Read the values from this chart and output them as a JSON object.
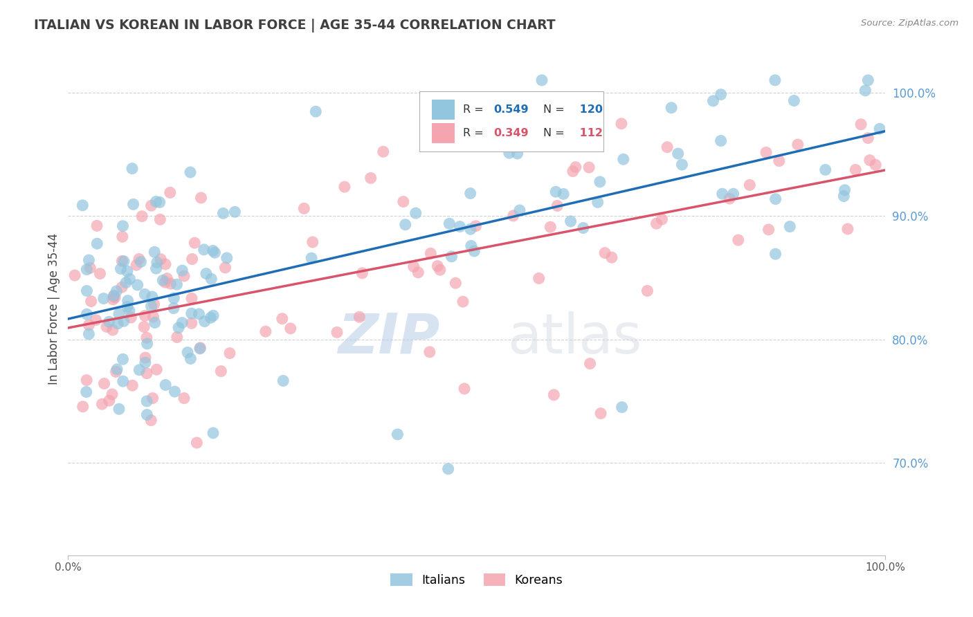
{
  "title": "ITALIAN VS KOREAN IN LABOR FORCE | AGE 35-44 CORRELATION CHART",
  "source_text": "Source: ZipAtlas.com",
  "ylabel": "In Labor Force | Age 35-44",
  "xlim": [
    0.0,
    1.0
  ],
  "ylim": [
    0.625,
    1.025
  ],
  "ytick_labels": [
    "70.0%",
    "80.0%",
    "90.0%",
    "100.0%"
  ],
  "ytick_values": [
    0.7,
    0.8,
    0.9,
    1.0
  ],
  "xtick_labels": [
    "0.0%",
    "100.0%"
  ],
  "xtick_values": [
    0.0,
    1.0
  ],
  "italian_color": "#92c5de",
  "korean_color": "#f4a5b0",
  "italian_line_color": "#1f6db5",
  "korean_line_color": "#d9536a",
  "italian_R": 0.549,
  "italian_N": 120,
  "korean_R": 0.349,
  "korean_N": 112,
  "legend_labels": [
    "Italians",
    "Koreans"
  ],
  "background_color": "#ffffff",
  "grid_color": "#cccccc",
  "ytick_color": "#5b9bd5",
  "title_color": "#404040",
  "source_color": "#888888"
}
